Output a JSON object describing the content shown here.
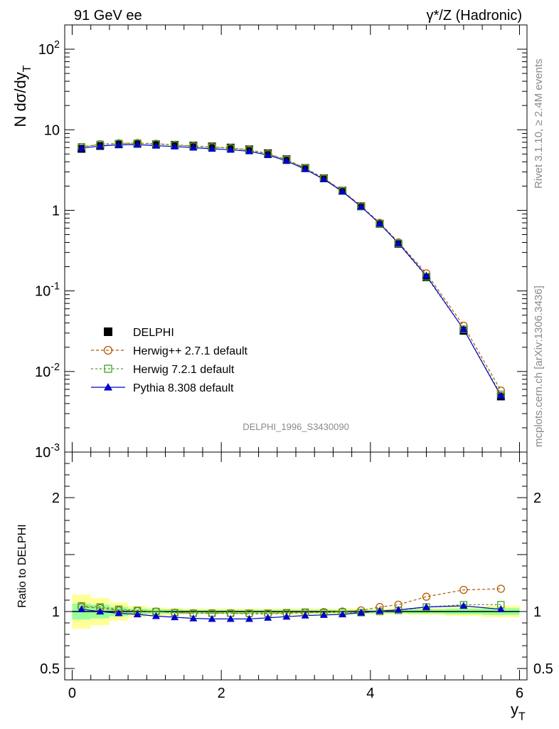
{
  "header": {
    "left": "91 GeV ee",
    "right": "γ*/Z (Hadronic)"
  },
  "side_text": {
    "rivet": "Rivet 3.1.10, ≥ 2.4M events",
    "mcplots": "mcplots.cern.ch [arXiv:1306.3436]"
  },
  "watermark": "DELPHI_1996_S3430090",
  "chart_data": [
    {
      "type": "line",
      "panel": "main",
      "ylabel": "N dσ/dy_T",
      "yscale": "log",
      "ylim": [
        0.001,
        200
      ],
      "xlim": [
        -0.1,
        6.1
      ],
      "yticks": [
        {
          "value": 100,
          "label": "10^2"
        },
        {
          "value": 10,
          "label": "10"
        },
        {
          "value": 1,
          "label": "1"
        },
        {
          "value": 0.1,
          "label": "10^-1"
        },
        {
          "value": 0.01,
          "label": "10^-2"
        },
        {
          "value": 0.001,
          "label": "10^-3"
        }
      ],
      "legend_position": "lower-left",
      "x": [
        0.125,
        0.375,
        0.625,
        0.875,
        1.125,
        1.375,
        1.625,
        1.875,
        2.125,
        2.375,
        2.625,
        2.875,
        3.125,
        3.375,
        3.625,
        3.875,
        4.125,
        4.375,
        4.75,
        5.25,
        5.75
      ],
      "series": [
        {
          "name": "DELPHI",
          "color": "#000000",
          "marker": "filled-square",
          "values": [
            5.8,
            6.3,
            6.6,
            6.7,
            6.6,
            6.5,
            6.35,
            6.2,
            6.0,
            5.7,
            5.1,
            4.3,
            3.35,
            2.5,
            1.75,
            1.12,
            0.68,
            0.385,
            0.148,
            0.032,
            0.0049
          ]
        },
        {
          "name": "Herwig++ 2.7.1 default",
          "color": "#b35900",
          "marker": "open-circle",
          "dash": "4,3",
          "values": [
            6.1,
            6.6,
            6.8,
            6.85,
            6.7,
            6.5,
            6.3,
            6.1,
            5.95,
            5.65,
            5.05,
            4.25,
            3.35,
            2.5,
            1.75,
            1.13,
            0.7,
            0.4,
            0.165,
            0.037,
            0.0058
          ]
        },
        {
          "name": "Herwig 7.2.1 default",
          "color": "#44a02a",
          "marker": "open-square",
          "dash": "3,3",
          "values": [
            6.15,
            6.6,
            6.75,
            6.8,
            6.65,
            6.45,
            6.25,
            6.1,
            5.9,
            5.6,
            5.0,
            4.25,
            3.33,
            2.48,
            1.74,
            1.11,
            0.68,
            0.39,
            0.15,
            0.0335,
            0.0052
          ]
        },
        {
          "name": "Pythia 8.308 default",
          "color": "#0000cc",
          "marker": "filled-triangle",
          "values": [
            5.9,
            6.3,
            6.5,
            6.55,
            6.35,
            6.2,
            6.0,
            5.8,
            5.65,
            5.4,
            4.85,
            4.1,
            3.24,
            2.43,
            1.71,
            1.11,
            0.685,
            0.39,
            0.155,
            0.0335,
            0.005
          ]
        }
      ]
    },
    {
      "type": "line",
      "panel": "ratio",
      "ylabel": "Ratio to DELPHI",
      "ylim": [
        0.4,
        2.4
      ],
      "xlabel": "y_T",
      "xlim": [
        -0.1,
        6.1
      ],
      "xticks": [
        {
          "value": 0,
          "label": "0"
        },
        {
          "value": 2,
          "label": "2"
        },
        {
          "value": 4,
          "label": "4"
        },
        {
          "value": 6,
          "label": "6"
        }
      ],
      "yticks": [
        {
          "value": 0.5,
          "label": "0.5"
        },
        {
          "value": 1,
          "label": "1"
        },
        {
          "value": 2,
          "label": "2"
        }
      ],
      "x": [
        0.125,
        0.375,
        0.625,
        0.875,
        1.125,
        1.375,
        1.625,
        1.875,
        2.125,
        2.375,
        2.625,
        2.875,
        3.125,
        3.375,
        3.625,
        3.875,
        4.125,
        4.375,
        4.75,
        5.25,
        5.75
      ],
      "x_edges": [
        0,
        0.25,
        0.5,
        0.75,
        1.0,
        1.25,
        1.5,
        1.75,
        2.0,
        2.25,
        2.5,
        2.75,
        3.0,
        3.25,
        3.5,
        3.75,
        4.0,
        4.25,
        4.5,
        5.0,
        5.5,
        6.0
      ],
      "band_green_halfwidth": [
        0.07,
        0.06,
        0.04,
        0.025,
        0.02,
        0.018,
        0.015,
        0.015,
        0.015,
        0.015,
        0.015,
        0.015,
        0.015,
        0.015,
        0.015,
        0.015,
        0.015,
        0.015,
        0.02,
        0.025,
        0.03
      ],
      "band_yellow_halfwidth": [
        0.15,
        0.12,
        0.08,
        0.05,
        0.035,
        0.03,
        0.025,
        0.025,
        0.025,
        0.025,
        0.025,
        0.025,
        0.025,
        0.025,
        0.025,
        0.025,
        0.025,
        0.025,
        0.03,
        0.04,
        0.05
      ],
      "series": [
        {
          "name": "Herwig++ 2.7.1 default",
          "color": "#b35900",
          "marker": "open-circle",
          "dash": "4,3",
          "values": [
            1.04,
            1.03,
            1.01,
            1.005,
            1.0,
            0.99,
            0.985,
            0.985,
            0.985,
            0.98,
            0.98,
            0.985,
            0.99,
            0.995,
            1.0,
            1.01,
            1.04,
            1.06,
            1.13,
            1.19,
            1.2
          ]
        },
        {
          "name": "Herwig 7.2.1 default",
          "color": "#44a02a",
          "marker": "open-square",
          "dash": "3,3",
          "values": [
            1.05,
            1.04,
            1.02,
            1.01,
            1.0,
            0.99,
            0.985,
            0.985,
            0.985,
            0.985,
            0.985,
            0.99,
            0.995,
            0.99,
            0.995,
            0.99,
            1.0,
            1.01,
            1.04,
            1.06,
            1.06
          ]
        },
        {
          "name": "Pythia 8.308 default",
          "color": "#0000cc",
          "marker": "filled-triangle",
          "values": [
            1.02,
            1.0,
            0.985,
            0.975,
            0.96,
            0.95,
            0.94,
            0.935,
            0.935,
            0.935,
            0.945,
            0.955,
            0.965,
            0.97,
            0.975,
            0.99,
            1.005,
            1.015,
            1.04,
            1.05,
            1.02
          ]
        }
      ]
    }
  ]
}
